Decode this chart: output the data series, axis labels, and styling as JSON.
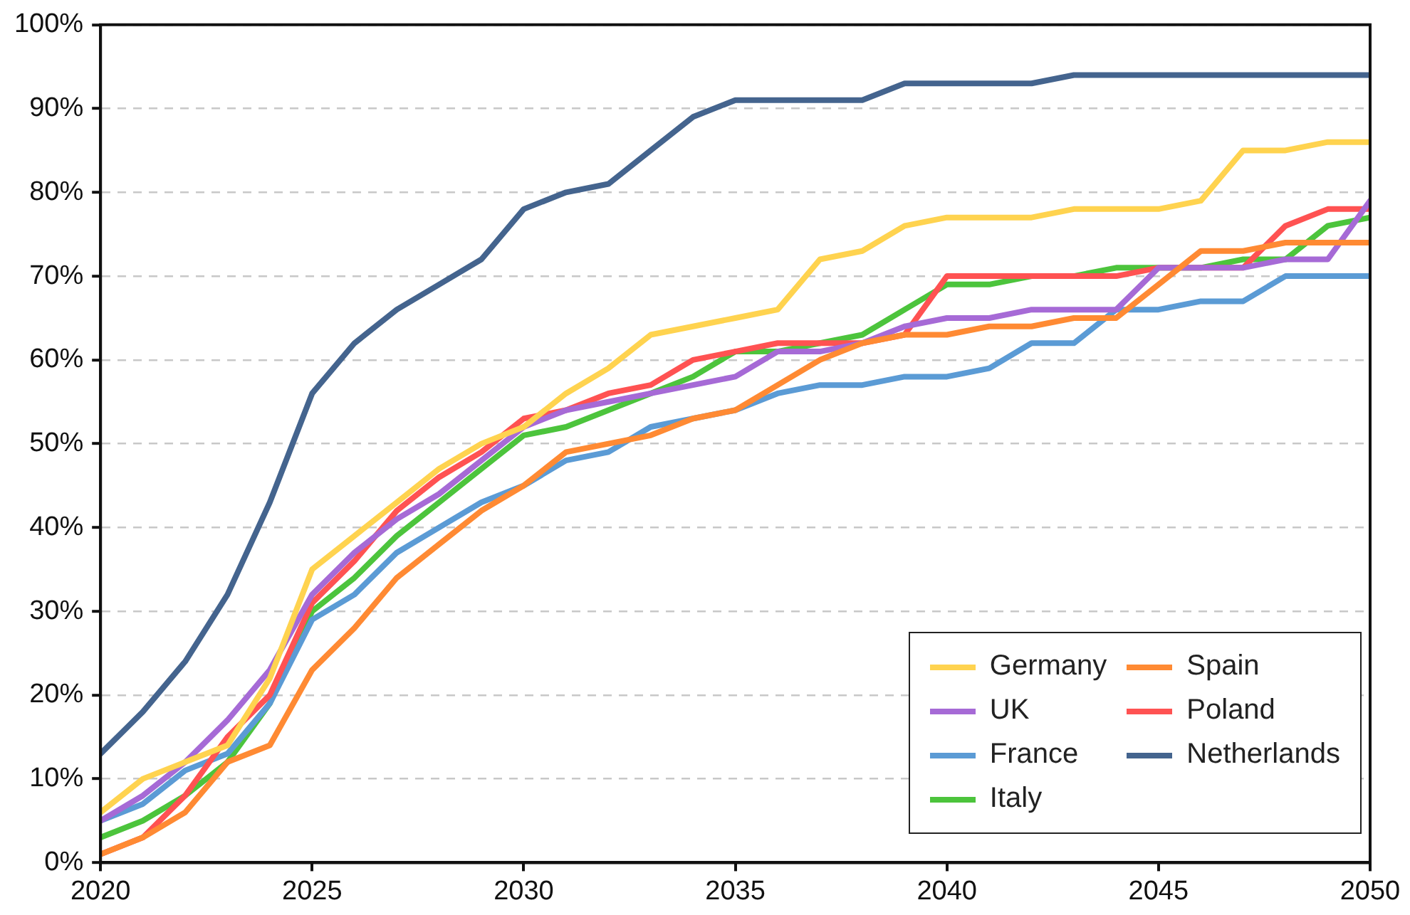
{
  "chart_data": {
    "type": "line",
    "x": [
      2020,
      2021,
      2022,
      2023,
      2024,
      2025,
      2026,
      2027,
      2028,
      2029,
      2030,
      2031,
      2032,
      2033,
      2034,
      2035,
      2036,
      2037,
      2038,
      2039,
      2040,
      2041,
      2042,
      2043,
      2044,
      2045,
      2046,
      2047,
      2048,
      2049,
      2050
    ],
    "series": [
      {
        "name": "Germany",
        "color": "#ffd34f",
        "values": [
          6,
          10,
          12,
          14,
          22,
          35,
          39,
          43,
          47,
          50,
          52,
          56,
          59,
          63,
          64,
          65,
          66,
          72,
          73,
          76,
          77,
          77,
          77,
          78,
          78,
          78,
          79,
          85,
          85,
          86,
          86
        ]
      },
      {
        "name": "Spain",
        "color": "#ff8a33",
        "values": [
          1,
          3,
          6,
          12,
          14,
          23,
          28,
          34,
          38,
          42,
          45,
          49,
          50,
          51,
          53,
          54,
          57,
          60,
          62,
          63,
          63,
          64,
          64,
          65,
          65,
          69,
          73,
          73,
          74,
          74,
          74
        ]
      },
      {
        "name": "UK",
        "color": "#a66ad6",
        "values": [
          5,
          8,
          12,
          17,
          23,
          32,
          37,
          41,
          44,
          48,
          52,
          54,
          55,
          56,
          57,
          58,
          61,
          61,
          62,
          64,
          65,
          65,
          66,
          66,
          66,
          71,
          71,
          71,
          72,
          72,
          79
        ]
      },
      {
        "name": "Poland",
        "color": "#ff5252",
        "values": [
          1,
          3,
          8,
          15,
          20,
          31,
          36,
          42,
          46,
          49,
          53,
          54,
          56,
          57,
          60,
          61,
          62,
          62,
          62,
          63,
          70,
          70,
          70,
          70,
          70,
          71,
          71,
          71,
          76,
          78,
          78
        ]
      },
      {
        "name": "France",
        "color": "#5b9bd5",
        "values": [
          5,
          7,
          11,
          13,
          19,
          29,
          32,
          37,
          40,
          43,
          45,
          48,
          49,
          52,
          53,
          54,
          56,
          57,
          57,
          58,
          58,
          59,
          62,
          62,
          66,
          66,
          67,
          67,
          70,
          70,
          70
        ]
      },
      {
        "name": "Netherlands",
        "color": "#44648e",
        "values": [
          13,
          18,
          24,
          32,
          43,
          56,
          62,
          66,
          69,
          72,
          78,
          80,
          81,
          85,
          89,
          91,
          91,
          91,
          91,
          93,
          93,
          93,
          93,
          94,
          94,
          94,
          94,
          94,
          94,
          94,
          94
        ]
      },
      {
        "name": "Italy",
        "color": "#4cc43c",
        "values": [
          3,
          5,
          8,
          12,
          19,
          30,
          34,
          39,
          43,
          47,
          51,
          52,
          54,
          56,
          58,
          61,
          61,
          62,
          63,
          66,
          69,
          69,
          70,
          70,
          71,
          71,
          71,
          72,
          72,
          76,
          77
        ]
      }
    ],
    "xlim": [
      2020,
      2050
    ],
    "xticks": [
      2020,
      2025,
      2030,
      2035,
      2040,
      2045,
      2050
    ],
    "ylim": [
      0,
      100
    ],
    "yticks": [
      {
        "value": 0,
        "label": "0%"
      },
      {
        "value": 10,
        "label": "10%"
      },
      {
        "value": 20,
        "label": "20%"
      },
      {
        "value": 30,
        "label": "30%"
      },
      {
        "value": 40,
        "label": "40%"
      },
      {
        "value": 50,
        "label": "50%"
      },
      {
        "value": 60,
        "label": "60%"
      },
      {
        "value": 70,
        "label": "70%"
      },
      {
        "value": 80,
        "label": "80%"
      },
      {
        "value": 90,
        "label": "90%"
      },
      {
        "value": 100,
        "label": "100%"
      }
    ],
    "grid": "y",
    "legend": "bottom right",
    "marker": "none",
    "line_style": "solid"
  }
}
